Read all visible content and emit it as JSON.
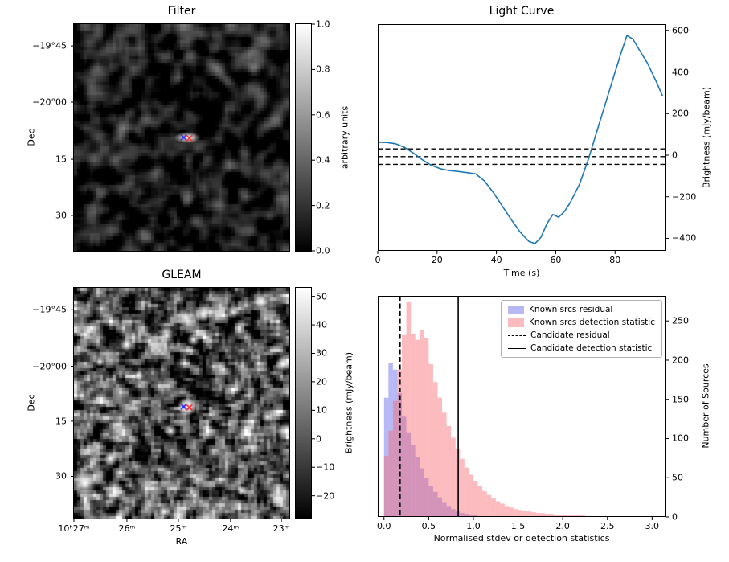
{
  "figure": {
    "background": "#ffffff"
  },
  "colors": {
    "line": "#1f77b4",
    "marker_blue": "#2222ff",
    "marker_red": "#ff2222",
    "residual_fill": "rgba(95,100,235,0.45)",
    "detection_fill": "rgba(248,105,110,0.45)"
  },
  "panels": {
    "filter": {
      "title": "Filter",
      "ylabel": "Dec",
      "colorbar_label": "arbitrary units"
    },
    "light_curve": {
      "title": "Light Curve",
      "xlabel": "Time (s)",
      "ylabel": "Brightness (mJy/beam)"
    },
    "gleam": {
      "title": "GLEAM",
      "xlabel": "RA",
      "ylabel": "Dec",
      "colorbar_label": "Brightness (mJy/beam)"
    },
    "histogram": {
      "xlabel": "Normalised stdev or detection statistics",
      "ylabel": "Number of Sources",
      "legend": [
        "Known srcs residual",
        "Known srcs detection statistic",
        "Candidate residual",
        "Candidate detection statistic"
      ]
    }
  },
  "chart_data": [
    {
      "type": "heatmap",
      "panel": "filter",
      "title": "Filter",
      "ylabel": "Dec",
      "yticks": [
        "−19°45'",
        "−20°00'",
        "15'",
        "30'"
      ],
      "ytick_pos": [
        0.096,
        0.344,
        0.596,
        0.844
      ],
      "colorbar": {
        "label": "arbitrary units",
        "ticks": [
          "1.0",
          "0.8",
          "0.6",
          "0.4",
          "0.2",
          "0.0"
        ],
        "vmin": 0.0,
        "vmax": 1.0
      },
      "source_pos": [
        0.525,
        0.5
      ],
      "description": "Dark grayscale noise map with one bright elongated source at centre marked by a blue × and a red ×"
    },
    {
      "type": "line",
      "panel": "light_curve",
      "title": "Light Curve",
      "xlabel": "Time (s)",
      "ylabel": "Brightness (mJy/beam)",
      "xlim": [
        0,
        97
      ],
      "ylim": [
        -460,
        630
      ],
      "xticks": [
        0,
        20,
        40,
        60,
        80
      ],
      "yticks": [
        600,
        400,
        200,
        0,
        -200,
        -400
      ],
      "x": [
        0,
        3,
        6,
        9,
        12,
        15,
        18,
        21,
        24,
        27,
        30,
        33,
        36,
        39,
        42,
        45,
        48,
        51,
        53,
        55,
        57,
        59,
        61,
        63,
        65,
        68,
        71,
        74,
        77,
        80,
        82,
        84,
        86,
        88,
        91,
        94,
        96
      ],
      "y": [
        62,
        61,
        55,
        38,
        10,
        -22,
        -48,
        -65,
        -74,
        -78,
        -84,
        -90,
        -125,
        -180,
        -245,
        -310,
        -370,
        -415,
        -425,
        -395,
        -330,
        -285,
        -298,
        -270,
        -225,
        -140,
        -20,
        120,
        260,
        400,
        490,
        575,
        558,
        510,
        440,
        350,
        285
      ],
      "threshold_hlines": [
        30,
        -7,
        -44
      ]
    },
    {
      "type": "heatmap",
      "panel": "gleam",
      "title": "GLEAM",
      "xlabel": "RA",
      "ylabel": "Dec",
      "xticks": [
        "10ʰ27ᵐ",
        "26ᵐ",
        "25ᵐ",
        "24ᵐ",
        "23ᵐ"
      ],
      "xtick_pos": [
        0.0,
        0.246,
        0.485,
        0.727,
        0.963
      ],
      "yticks": [
        "−19°45'",
        "−20°00'",
        "15'",
        "30'"
      ],
      "ytick_pos": [
        0.095,
        0.34,
        0.578,
        0.817
      ],
      "colorbar": {
        "label": "Brightness (mJy/beam)",
        "ticks": [
          50,
          40,
          30,
          20,
          10,
          0,
          -10,
          -20
        ],
        "vmin": -28,
        "vmax": 53
      },
      "source_pos": [
        0.525,
        0.515
      ],
      "blobs": [
        [
          0.52,
          0.13,
          6
        ],
        [
          0.6,
          0.115,
          5
        ],
        [
          0.43,
          0.205,
          5
        ],
        [
          0.555,
          0.225,
          4
        ],
        [
          0.74,
          0.105,
          4
        ],
        [
          0.87,
          0.06,
          4
        ],
        [
          0.97,
          0.33,
          5
        ],
        [
          0.985,
          0.62,
          6
        ],
        [
          0.9,
          0.56,
          4
        ],
        [
          0.05,
          0.845,
          8
        ],
        [
          0.17,
          0.74,
          4
        ],
        [
          0.45,
          0.62,
          4
        ],
        [
          0.3,
          0.38,
          3
        ],
        [
          0.12,
          0.32,
          3
        ],
        [
          0.78,
          0.88,
          3
        ],
        [
          0.42,
          0.97,
          4
        ],
        [
          0.245,
          0.245,
          4
        ]
      ],
      "description": "Grayscale GLEAM sky map with many bright compact sources; central source marked by a blue × and a red ×"
    },
    {
      "type": "histogram",
      "panel": "histogram",
      "xlabel": "Normalised stdev or detection statistics",
      "ylabel": "Number of Sources",
      "xlim": [
        -0.07,
        3.15
      ],
      "ylim": [
        0,
        282
      ],
      "xticks": [
        0.0,
        0.5,
        1.0,
        1.5,
        2.0,
        2.5,
        3.0
      ],
      "yticks": [
        0,
        50,
        100,
        150,
        200,
        250
      ],
      "bin_start": 0.0,
      "bin_width": 0.05,
      "series": [
        {
          "name": "Known srcs residual",
          "counts": [
            152,
            196,
            188,
            158,
            128,
            108,
            92,
            76,
            62,
            50,
            40,
            32,
            25,
            19,
            14,
            10,
            7,
            5,
            4,
            3,
            2,
            1,
            1,
            1
          ]
        },
        {
          "name": "Known srcs detection statistic",
          "counts": [
            78,
            110,
            148,
            188,
            232,
            275,
            234,
            226,
            238,
            228,
            195,
            172,
            152,
            133,
            116,
            101,
            87,
            74,
            63,
            54,
            46,
            39,
            33,
            28,
            24,
            20,
            17,
            14,
            12,
            10,
            9,
            8,
            7,
            6,
            5,
            5,
            4,
            4,
            3,
            3,
            3,
            2,
            2,
            2,
            2,
            1,
            1,
            1,
            1,
            1,
            1,
            0,
            1,
            0,
            0,
            1,
            0,
            0,
            0,
            0,
            1,
            0
          ]
        }
      ],
      "vlines": [
        {
          "name": "Candidate residual",
          "x": 0.18,
          "style": "dashed"
        },
        {
          "name": "Candidate detection statistic",
          "x": 0.83,
          "style": "solid"
        }
      ]
    }
  ]
}
